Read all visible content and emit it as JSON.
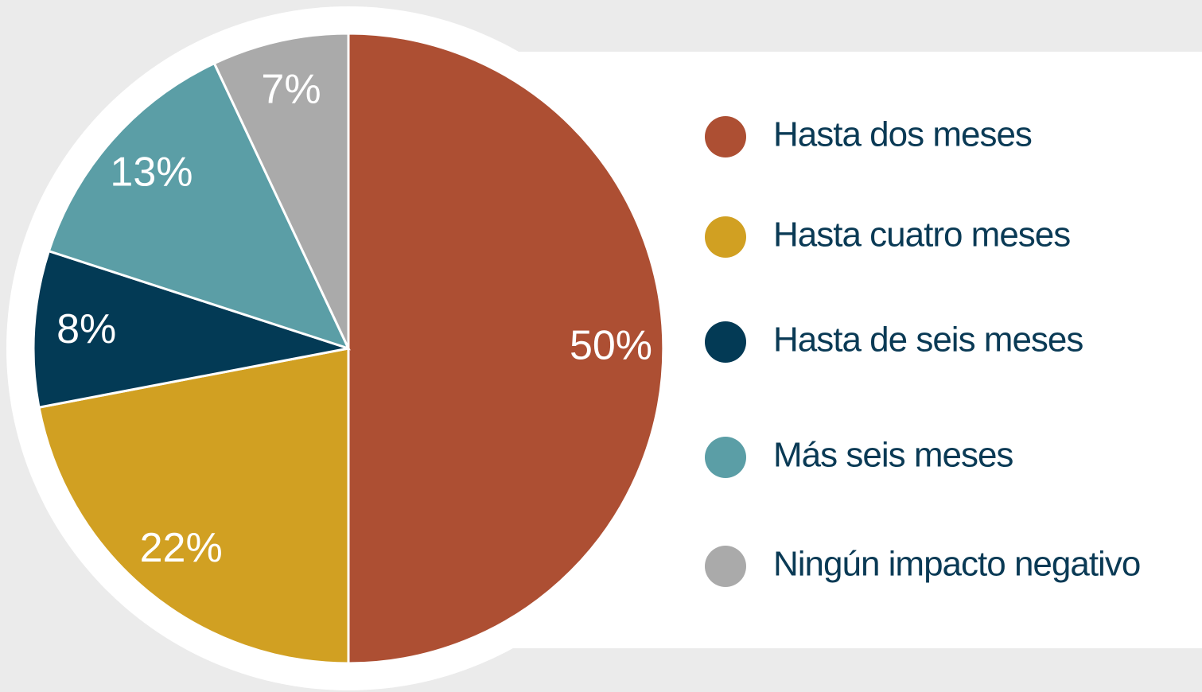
{
  "chart_data": {
    "type": "pie",
    "categories": [
      "Hasta dos meses",
      "Hasta cuatro meses",
      "Hasta de seis meses",
      "Más seis meses",
      "Ningún impacto negativo"
    ],
    "values": [
      50,
      22,
      8,
      13,
      7
    ],
    "value_labels": [
      "50%",
      "22%",
      "8%",
      "13%",
      "7%"
    ],
    "colors": [
      "#ad4f33",
      "#d1a022",
      "#033a55",
      "#5b9ea6",
      "#aaaaaa"
    ],
    "legend": "right"
  }
}
